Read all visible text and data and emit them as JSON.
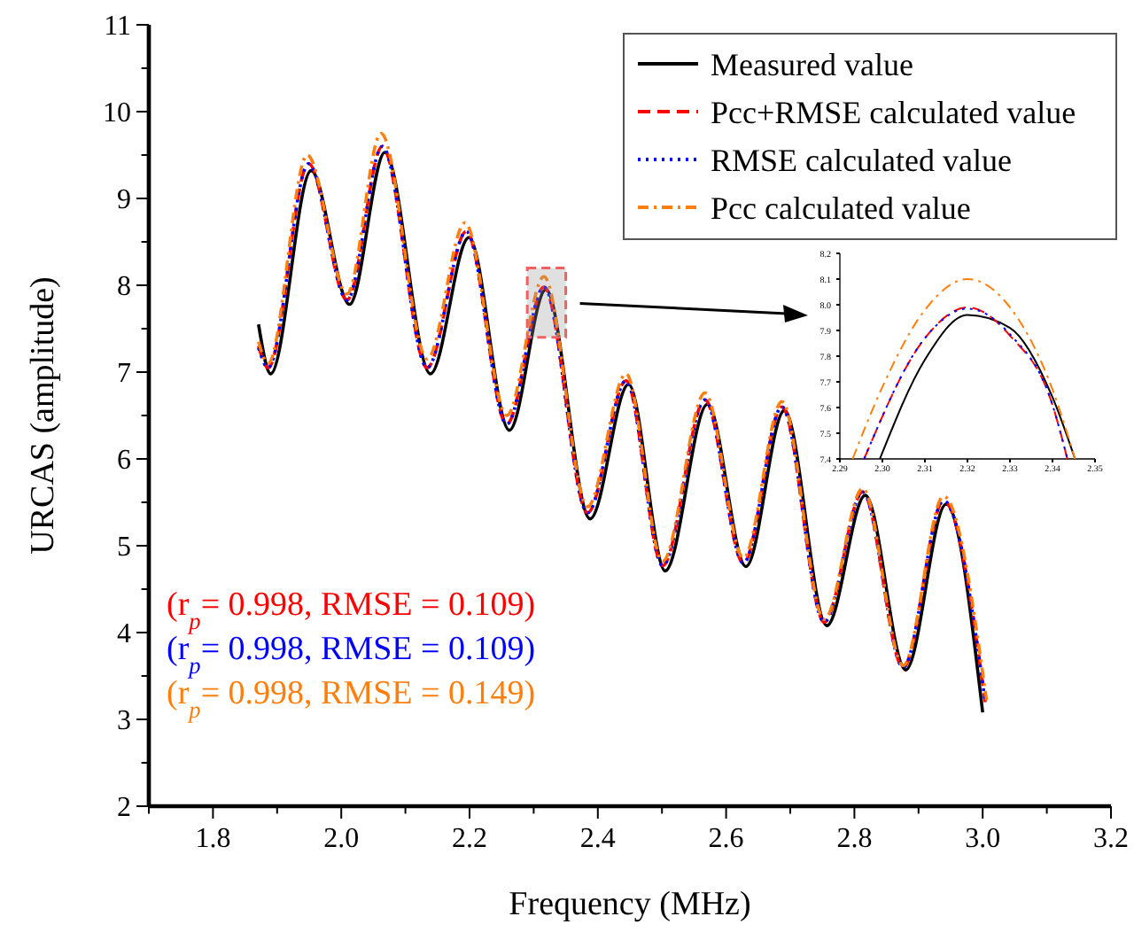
{
  "chart_data": [
    {
      "type": "line",
      "xlabel": "Frequency  (MHz)",
      "ylabel": "URCAS (amplitude)",
      "xlim": [
        1.7,
        3.2
      ],
      "ylim": [
        2,
        11
      ],
      "xticks": [
        {
          "value": 1.7,
          "label": null
        },
        1.8,
        {
          "value": 1.9,
          "label": null
        },
        {
          "value": 2.0,
          "label": "2.0"
        },
        {
          "value": 2.1,
          "label": null
        },
        2.2,
        {
          "value": 2.3,
          "label": null
        },
        2.4,
        {
          "value": 2.5,
          "label": null
        },
        2.6,
        {
          "value": 2.7,
          "label": null
        },
        2.8,
        {
          "value": 2.9,
          "label": null
        },
        {
          "value": 3.0,
          "label": "3.0"
        },
        {
          "value": 3.1,
          "label": null
        },
        3.2
      ],
      "yticks": [
        2,
        {
          "value": 2.5,
          "label": null
        },
        3,
        {
          "value": 3.5,
          "label": null
        },
        4,
        {
          "value": 4.5,
          "label": null
        },
        5,
        {
          "value": 5.5,
          "label": null
        },
        6,
        {
          "value": 6.5,
          "label": null
        },
        7,
        {
          "value": 7.5,
          "label": null
        },
        8,
        {
          "value": 8.5,
          "label": null
        },
        9,
        {
          "value": 9.5,
          "label": null
        },
        10,
        {
          "value": 10.5,
          "label": null
        },
        11
      ],
      "legend": "top right",
      "grid": false,
      "series": [
        {
          "name": "Measured value",
          "color": "#000000",
          "line_style": "solid",
          "x": [
            1.871,
            1.89,
            1.953,
            2.013,
            2.068,
            2.139,
            2.199,
            2.262,
            2.319,
            2.388,
            2.448,
            2.505,
            2.571,
            2.631,
            2.691,
            2.757,
            2.817,
            2.88,
            2.943,
            3.0
          ],
          "values": [
            7.55,
            6.98,
            9.32,
            7.78,
            9.53,
            6.98,
            8.55,
            6.33,
            7.95,
            5.31,
            6.86,
            4.71,
            6.63,
            4.76,
            6.56,
            4.08,
            5.58,
            3.57,
            5.48,
            3.08
          ]
        },
        {
          "name": "Pcc+RMSE calculated value",
          "color": "#ff0000",
          "line_style": "dashed",
          "x": [
            1.871,
            1.886,
            1.949,
            2.009,
            2.064,
            2.134,
            2.195,
            2.258,
            2.316,
            2.384,
            2.444,
            2.501,
            2.567,
            2.627,
            2.687,
            2.753,
            2.813,
            2.876,
            2.939,
            3.004
          ],
          "values": [
            7.3,
            7.05,
            9.4,
            7.83,
            9.6,
            7.05,
            8.62,
            6.4,
            7.98,
            5.38,
            6.9,
            4.77,
            6.68,
            4.8,
            6.6,
            4.12,
            5.62,
            3.6,
            5.52,
            3.2
          ]
        },
        {
          "name": "RMSE calculated value",
          "color": "#0000ff",
          "line_style": "dotted",
          "x": [
            1.871,
            1.886,
            1.949,
            2.009,
            2.064,
            2.134,
            2.195,
            2.258,
            2.316,
            2.384,
            2.444,
            2.501,
            2.567,
            2.627,
            2.687,
            2.753,
            2.813,
            2.876,
            2.939,
            3.004
          ],
          "values": [
            7.28,
            7.05,
            9.4,
            7.83,
            9.6,
            7.05,
            8.62,
            6.4,
            7.98,
            5.38,
            6.9,
            4.77,
            6.68,
            4.8,
            6.6,
            4.12,
            5.62,
            3.6,
            5.52,
            3.2
          ]
        },
        {
          "name": "Pcc calculated value",
          "color": "#ff7f0e",
          "line_style": "dashdot",
          "x": [
            1.871,
            1.886,
            1.947,
            2.009,
            2.062,
            2.134,
            2.193,
            2.258,
            2.316,
            2.384,
            2.444,
            2.501,
            2.567,
            2.627,
            2.687,
            2.753,
            2.813,
            2.876,
            2.939,
            3.006
          ],
          "values": [
            7.35,
            7.1,
            9.5,
            7.9,
            9.75,
            7.15,
            8.72,
            6.5,
            8.1,
            5.45,
            6.98,
            4.82,
            6.76,
            4.86,
            6.66,
            4.15,
            5.66,
            3.62,
            5.57,
            3.22
          ]
        }
      ],
      "annotations": [
        "(r$_{p}$= 0.998, RMSE = 0.109)",
        "(r$_{p}$= 0.998, RMSE = 0.109)",
        "(r$_{p}$= 0.998, RMSE = 0.149)"
      ]
    },
    {
      "type": "line",
      "xlim": [
        2.29,
        2.35
      ],
      "ylim": [
        7.4,
        8.2
      ],
      "xticks": [
        2.29,
        {
          "value": 2.3,
          "label": "2.30"
        },
        2.31,
        2.32,
        2.33,
        2.34,
        2.35
      ],
      "yticks": [
        7.4,
        7.5,
        7.6,
        7.7,
        7.8,
        7.9,
        {
          "value": 8.0,
          "label": "8.0"
        },
        8.1,
        8.2
      ],
      "legend": false,
      "series": [
        {
          "color": "#000000",
          "line_style": "solid",
          "x": [
            2.2994,
            2.31,
            2.32,
            2.33,
            2.34,
            2.3453
          ],
          "values": [
            7.4,
            7.786,
            7.96,
            7.91,
            7.64,
            7.4
          ]
        },
        {
          "color": "#ff0000",
          "line_style": "dashed",
          "x": [
            2.2957,
            2.31,
            2.32,
            2.33,
            2.34,
            2.3435
          ],
          "values": [
            7.4,
            7.87,
            7.99,
            7.88,
            7.61,
            7.4
          ]
        },
        {
          "color": "#0000ff",
          "line_style": "dotted",
          "x": [
            2.2957,
            2.31,
            2.32,
            2.33,
            2.34,
            2.3435
          ],
          "values": [
            7.4,
            7.87,
            7.985,
            7.885,
            7.61,
            7.4
          ]
        },
        {
          "color": "#ff7f0e",
          "line_style": "dashdot",
          "x": [
            2.293,
            2.3,
            2.31,
            2.32,
            2.33,
            2.34,
            2.3453
          ],
          "values": [
            7.4,
            7.68,
            7.98,
            8.1,
            7.99,
            7.67,
            7.4
          ]
        }
      ]
    }
  ]
}
